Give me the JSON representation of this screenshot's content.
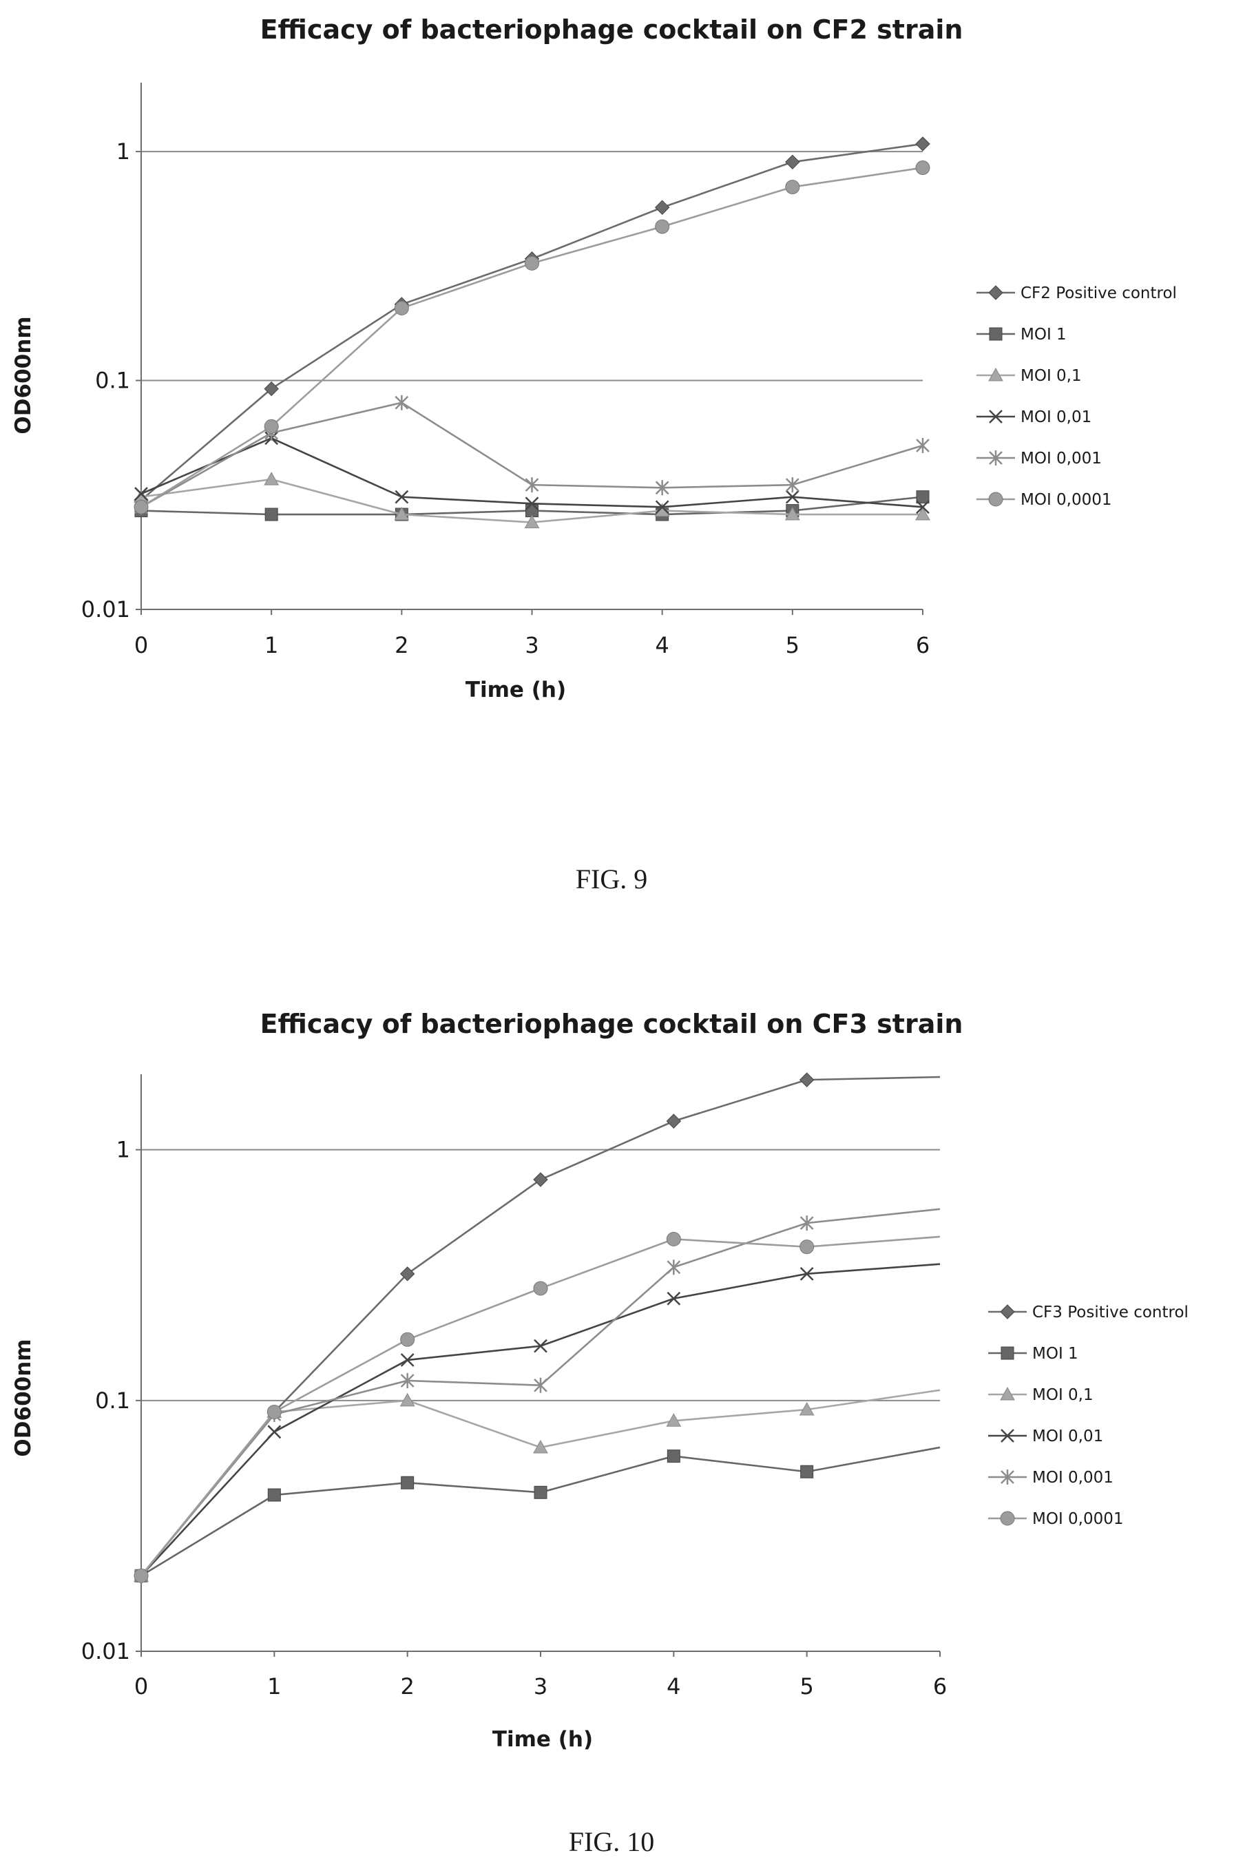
{
  "colors": {
    "positive_control": "#6b6b6b",
    "moi_1": "#666666",
    "moi_0_1": "#a6a6a6",
    "moi_0_01": "#444444",
    "moi_0_001": "#8c8c8c",
    "moi_0_0001": "#9c9c9c",
    "grid": "#8a8a8a",
    "axis": "#6e6e6e",
    "text": "#1a1a1a"
  },
  "chart_data": [
    {
      "type": "line",
      "title": "Efficacy of bacteriophage cocktail on CF2 strain",
      "xlabel": "Time (h)",
      "ylabel": "OD600nm",
      "caption": "FIG. 9",
      "yscale": "log",
      "xlim": [
        0,
        6
      ],
      "ylim": [
        0.01,
        2
      ],
      "x": [
        0,
        1,
        2,
        3,
        4,
        5,
        6
      ],
      "x_ticks": [
        "0",
        "1",
        "2",
        "3",
        "4",
        "5",
        "6"
      ],
      "y_ticks": [
        {
          "value": 0.01,
          "label": "0.01"
        },
        {
          "value": 0.1,
          "label": "0.1"
        },
        {
          "value": 1,
          "label": "1"
        }
      ],
      "gridlines_y": [
        0.1,
        1
      ],
      "legend_position": "right",
      "series": [
        {
          "name": "CF2 Positive control",
          "marker": "diamond",
          "color_key": "positive_control",
          "values": [
            0.03,
            0.092,
            0.215,
            0.34,
            0.57,
            0.9,
            1.08
          ]
        },
        {
          "name": "MOI 1",
          "marker": "square",
          "color_key": "moi_1",
          "values": [
            0.027,
            0.026,
            0.026,
            0.027,
            0.026,
            0.027,
            0.031
          ]
        },
        {
          "name": "MOI 0,1",
          "marker": "triangle",
          "color_key": "moi_0_1",
          "values": [
            0.031,
            0.037,
            0.026,
            0.024,
            0.027,
            0.026,
            0.026
          ]
        },
        {
          "name": "MOI 0,01",
          "marker": "x",
          "color_key": "moi_0_01",
          "values": [
            0.032,
            0.056,
            0.031,
            0.029,
            0.028,
            0.031,
            0.028
          ]
        },
        {
          "name": "MOI 0,001",
          "marker": "star",
          "color_key": "moi_0_001",
          "values": [
            0.028,
            0.059,
            0.08,
            0.035,
            0.034,
            0.035,
            0.052
          ]
        },
        {
          "name": "MOI 0,0001",
          "marker": "circle",
          "color_key": "moi_0_0001",
          "values": [
            0.028,
            0.063,
            0.207,
            0.325,
            0.47,
            0.7,
            0.85
          ]
        }
      ]
    },
    {
      "type": "line",
      "title": "Efficacy of bacteriophage cocktail on CF3 strain",
      "xlabel": "Time (h)",
      "ylabel": "OD600nm",
      "caption": "FIG. 10",
      "yscale": "log",
      "xlim": [
        0,
        6
      ],
      "ylim": [
        0.01,
        2
      ],
      "x": [
        0,
        1,
        2,
        3,
        4,
        5,
        6
      ],
      "x_ticks": [
        "0",
        "1",
        "2",
        "3",
        "4",
        "5",
        "6"
      ],
      "y_ticks": [
        {
          "value": 0.01,
          "label": "0.01"
        },
        {
          "value": 0.1,
          "label": "0.1"
        },
        {
          "value": 1,
          "label": "1"
        }
      ],
      "gridlines_y": [
        0.1,
        1
      ],
      "legend_position": "right",
      "series": [
        {
          "name": "CF3 Positive control",
          "marker": "diamond",
          "color_key": "positive_control",
          "values": [
            0.02,
            0.09,
            0.32,
            0.76,
            1.3,
            1.9,
            1.95
          ],
          "last_marker": false
        },
        {
          "name": "MOI 1",
          "marker": "square",
          "color_key": "moi_1",
          "values": [
            0.02,
            0.042,
            0.047,
            0.043,
            0.06,
            0.052,
            0.065
          ],
          "last_marker": false
        },
        {
          "name": "MOI 0,1",
          "marker": "triangle",
          "color_key": "moi_0_1",
          "values": [
            0.02,
            0.09,
            0.1,
            0.065,
            0.083,
            0.092,
            0.11
          ],
          "last_marker": false
        },
        {
          "name": "MOI 0,01",
          "marker": "x",
          "color_key": "moi_0_01",
          "values": [
            0.02,
            0.075,
            0.145,
            0.165,
            0.255,
            0.32,
            0.35
          ],
          "last_marker": false
        },
        {
          "name": "MOI 0,001",
          "marker": "star",
          "color_key": "moi_0_001",
          "values": [
            0.02,
            0.088,
            0.12,
            0.115,
            0.34,
            0.51,
            0.58
          ],
          "last_marker": false
        },
        {
          "name": "MOI 0,0001",
          "marker": "circle",
          "color_key": "moi_0_0001",
          "values": [
            0.02,
            0.09,
            0.175,
            0.28,
            0.44,
            0.41,
            0.45
          ],
          "last_marker": false
        }
      ]
    }
  ]
}
